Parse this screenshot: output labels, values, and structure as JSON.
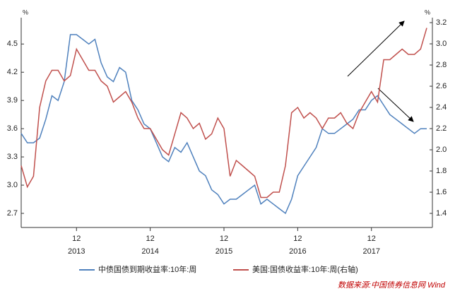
{
  "chart_data": {
    "type": "line",
    "y_unit": "%",
    "y2_unit": "%",
    "categories": [
      null,
      null,
      null,
      null,
      null,
      null,
      null,
      null,
      null,
      "12",
      null,
      null,
      null,
      null,
      null,
      null,
      null,
      null,
      null,
      null,
      null,
      "12",
      null,
      null,
      null,
      null,
      null,
      null,
      null,
      null,
      null,
      null,
      null,
      "12",
      null,
      null,
      null,
      null,
      null,
      null,
      null,
      null,
      null,
      null,
      null,
      "12",
      null,
      null,
      null,
      null,
      null,
      null,
      null,
      null,
      null,
      null,
      null,
      "12",
      null,
      null,
      null,
      null,
      null,
      null,
      null,
      null,
      null
    ],
    "year_labels": [
      "2013",
      "2014",
      "2015",
      "2016",
      "2017"
    ],
    "ylim": [
      2.55,
      4.78
    ],
    "yticks": [
      2.7,
      {
        "value": 3,
        "label": "3.0"
      },
      3.3,
      3.6,
      3.9,
      4.2,
      4.5
    ],
    "y2lim": [
      1.267,
      3.247
    ],
    "y2ticks": [
      1.4,
      1.6,
      1.8,
      {
        "value": 2,
        "label": "2.0"
      },
      2.2,
      2.4,
      2.6,
      2.8,
      {
        "value": 3,
        "label": "3.0"
      },
      3.2
    ],
    "series": [
      {
        "name": "中债国债到期收益率:10年:周",
        "color": "#4f81bd",
        "values": [
          3.55,
          3.45,
          3.45,
          3.5,
          3.7,
          3.95,
          3.9,
          4.1,
          4.6,
          4.6,
          4.55,
          4.5,
          4.55,
          4.3,
          4.15,
          4.1,
          4.25,
          4.2,
          3.9,
          3.8,
          3.65,
          3.6,
          3.45,
          3.3,
          3.25,
          3.4,
          3.35,
          3.45,
          3.3,
          3.15,
          3.1,
          2.95,
          2.9,
          2.8,
          2.85,
          2.85,
          2.9,
          2.95,
          3.0,
          2.8,
          2.85,
          2.8,
          2.75,
          2.7,
          2.85,
          3.1,
          3.2,
          3.3,
          3.4,
          3.6,
          3.55,
          3.55,
          3.6,
          3.65,
          3.7,
          3.8,
          3.8,
          3.9,
          3.95,
          3.85,
          3.75,
          3.7,
          3.65,
          3.6,
          3.55,
          3.6,
          3.6
        ]
      },
      {
        "name": "美国:国债收益率:10年:周(右轴)",
        "color": "#c0504d",
        "axis": "y2",
        "values": [
          1.85,
          1.65,
          1.75,
          2.4,
          2.65,
          2.75,
          2.75,
          2.65,
          2.7,
          2.95,
          2.85,
          2.75,
          2.75,
          2.65,
          2.6,
          2.45,
          2.5,
          2.55,
          2.45,
          2.3,
          2.2,
          2.2,
          2.1,
          2.0,
          1.95,
          2.15,
          2.35,
          2.3,
          2.2,
          2.25,
          2.1,
          2.15,
          2.3,
          2.2,
          1.75,
          1.9,
          1.85,
          1.8,
          1.75,
          1.55,
          1.55,
          1.6,
          1.6,
          1.85,
          2.35,
          2.4,
          2.3,
          2.35,
          2.3,
          2.2,
          2.3,
          2.3,
          2.35,
          2.25,
          2.2,
          2.35,
          2.45,
          2.55,
          2.45,
          2.85,
          2.85,
          2.9,
          2.95,
          2.9,
          2.9,
          2.95,
          3.15
        ]
      }
    ],
    "source": "数据来源:中国债券信息网 Wind"
  }
}
